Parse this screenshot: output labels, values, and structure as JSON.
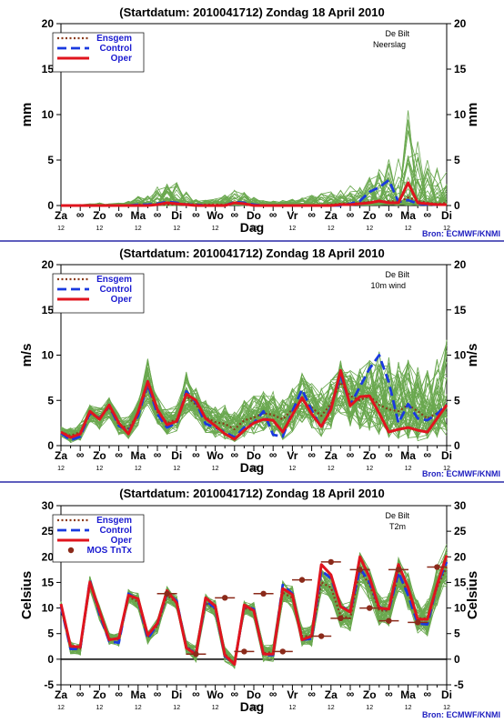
{
  "colors": {
    "ensemble_member": "#6aa84f",
    "ensgem": "#8b3a1a",
    "control": "#1a3adf",
    "oper": "#e0141e",
    "mos": "#8b2a1a",
    "separator": "#2828a8",
    "source": "#2020c0"
  },
  "day_labels": [
    "Za",
    "Zo",
    "Ma",
    "Di",
    "Wo",
    "Do",
    "Vr",
    "Za",
    "Zo",
    "Ma",
    "Di"
  ],
  "midnight_symbol": "∞",
  "hour_label": "12",
  "xlabel": "Dag",
  "source_text": "Bron: ECMWF/KNMI",
  "legend": {
    "ensgem": "Ensgem",
    "control": "Control",
    "oper": "Oper",
    "mos": "MOS TnTx"
  },
  "chart_data": [
    {
      "type": "line",
      "title": "(Startdatum: 2010041712)   Zondag    18 April    2010",
      "location": "De Bilt",
      "variable": "Neerslag",
      "ylabel": "mm",
      "ylim": [
        0,
        20
      ],
      "yticks": [
        0,
        5,
        10,
        15,
        20
      ],
      "x_unit": "time steps of 6 h from Saturday 12 UTC (index 0) to Tuesday 12 UTC (index 40)",
      "series": [
        {
          "name": "Ensgem",
          "values": [
            0,
            0,
            0,
            0,
            0,
            0,
            0,
            0,
            0.1,
            0.1,
            0.1,
            0.1,
            0.1,
            0.2,
            0.1,
            0.1,
            0.1,
            0.1,
            0.3,
            0.2,
            0.1,
            0,
            0,
            0,
            0,
            0,
            0,
            0,
            0.1,
            0.2,
            0.2,
            0.3,
            0.4,
            0.4,
            0.5,
            0.4,
            0.9,
            0.5,
            0.3,
            0.2,
            0.3
          ]
        },
        {
          "name": "Control",
          "values": [
            0,
            0,
            0,
            0,
            0,
            0,
            0,
            0,
            0.1,
            0.1,
            0.2,
            0.4,
            0.3,
            0.1,
            0.1,
            0,
            0,
            0,
            0.4,
            0.3,
            0.1,
            0,
            0,
            0,
            0,
            0,
            0,
            0,
            0,
            0,
            0.2,
            0.5,
            1.5,
            2.0,
            2.8,
            0.4,
            0.6,
            0.2,
            0.1,
            0.1,
            0.1
          ]
        },
        {
          "name": "Oper",
          "values": [
            0,
            0,
            0,
            0,
            0,
            0,
            0,
            0,
            0,
            0,
            0.1,
            0.3,
            0.2,
            0.1,
            0,
            0,
            0,
            0,
            0.3,
            0.2,
            0,
            0,
            0,
            0,
            0,
            0,
            0,
            0,
            0,
            0.1,
            0.1,
            0.2,
            0.3,
            0.5,
            0.3,
            0.3,
            2.5,
            0.3,
            0.2,
            0.1,
            0.1
          ]
        }
      ],
      "ensemble_envelope_max": [
        0.1,
        0.1,
        0.2,
        0.2,
        0.3,
        0.2,
        0.3,
        0.5,
        1.0,
        1.2,
        2.2,
        3.0,
        2.5,
        1.5,
        0.8,
        0.6,
        0.8,
        1.2,
        1.8,
        1.4,
        1.0,
        0.6,
        0.5,
        0.6,
        0.8,
        0.9,
        1.2,
        1.4,
        1.6,
        2.0,
        2.4,
        2.8,
        3.2,
        4.0,
        5.0,
        6.0,
        10.8,
        7.0,
        5.5,
        4.5,
        4.0
      ]
    },
    {
      "type": "line",
      "title": "(Startdatum: 2010041712)   Zondag    18 April    2010",
      "location": "De Bilt",
      "variable": "10m wind",
      "ylabel": "m/s",
      "ylim": [
        0,
        20
      ],
      "yticks": [
        0,
        5,
        10,
        15,
        20
      ],
      "series": [
        {
          "name": "Ensgem",
          "values": [
            1.5,
            1.1,
            1.5,
            3.5,
            3.1,
            4.2,
            2.3,
            1.9,
            3.5,
            6.5,
            3.7,
            2.5,
            2.9,
            5.5,
            4.5,
            3.1,
            2.6,
            2.4,
            1.8,
            2.8,
            3.1,
            3.6,
            3.4,
            2.9,
            4.0,
            5.0,
            4.2,
            3.3,
            4.6,
            7.0,
            5.5,
            5.0,
            5.5,
            4.5,
            4.0,
            3.8,
            4.5,
            3.8,
            3.0,
            3.6,
            4.2
          ]
        },
        {
          "name": "Control",
          "values": [
            1.4,
            0.6,
            1.0,
            3.6,
            3.0,
            4.4,
            2.2,
            1.6,
            3.3,
            6.8,
            3.5,
            2.0,
            2.5,
            6.0,
            4.8,
            2.4,
            2.0,
            1.5,
            0.9,
            2.0,
            2.5,
            3.8,
            1.2,
            1.0,
            3.8,
            6.2,
            3.9,
            2.0,
            4.2,
            7.8,
            4.5,
            6.5,
            8.5,
            10.0,
            7.0,
            2.5,
            4.6,
            3.0,
            2.8,
            3.5,
            4.5
          ]
        },
        {
          "name": "Oper",
          "values": [
            1.5,
            0.9,
            1.3,
            3.8,
            2.9,
            4.5,
            2.5,
            1.3,
            3.7,
            7.1,
            4.0,
            2.3,
            2.7,
            5.7,
            5.0,
            3.0,
            2.2,
            1.3,
            0.7,
            1.7,
            2.5,
            2.9,
            2.8,
            1.5,
            3.4,
            5.3,
            3.5,
            2.1,
            4.0,
            8.3,
            4.4,
            5.4,
            5.5,
            3.6,
            1.5,
            1.8,
            2.0,
            1.7,
            1.5,
            3.0,
            4.5
          ]
        }
      ],
      "ensemble_envelope_min": [
        1.0,
        0.3,
        0.6,
        2.5,
        1.8,
        3.0,
        1.2,
        0.7,
        2.2,
        4.5,
        2.4,
        1.2,
        1.6,
        3.5,
        2.8,
        1.4,
        0.9,
        0.6,
        0.3,
        0.8,
        1.2,
        1.5,
        1.0,
        0.6,
        1.5,
        2.5,
        1.8,
        1.0,
        1.8,
        3.5,
        2.0,
        1.8,
        1.5,
        1.2,
        0.8,
        0.6,
        0.7,
        0.5,
        0.4,
        0.8,
        1.0
      ],
      "ensemble_envelope_max": [
        2.1,
        2.0,
        2.5,
        4.5,
        4.2,
        5.3,
        3.5,
        3.2,
        5.0,
        9.8,
        5.5,
        4.0,
        4.5,
        8.2,
        6.5,
        5.0,
        4.5,
        4.5,
        3.8,
        5.0,
        5.5,
        6.0,
        6.0,
        5.5,
        6.5,
        8.0,
        7.0,
        6.5,
        7.5,
        9.5,
        8.5,
        8.5,
        9.5,
        10.5,
        10.0,
        9.5,
        10.5,
        9.0,
        8.5,
        10.0,
        12.0
      ]
    },
    {
      "type": "line",
      "title": "(Startdatum: 2010041712)   Zondag    18 April    2010",
      "location": "De Bilt",
      "variable": "T2m",
      "ylabel": "Celsius",
      "ylim": [
        -5,
        30
      ],
      "yticks": [
        -5,
        0,
        5,
        10,
        15,
        20,
        25,
        30
      ],
      "series": [
        {
          "name": "Ensgem",
          "values": [
            10.5,
            2.2,
            2.0,
            15.0,
            9.0,
            4.0,
            3.8,
            12.2,
            11.2,
            4.2,
            6.5,
            12.5,
            11.0,
            2.5,
            1.2,
            11.0,
            9.8,
            1.0,
            -0.8,
            10.0,
            9.5,
            1.2,
            1.4,
            13.0,
            12.0,
            4.5,
            4.5,
            15.0,
            14.0,
            8.5,
            8.0,
            17.5,
            14.5,
            9.5,
            9.5,
            16.5,
            13.0,
            8.0,
            8.0,
            14.0,
            18.0
          ]
        },
        {
          "name": "Control",
          "values": [
            10.3,
            2.0,
            2.0,
            15.4,
            8.8,
            3.5,
            3.2,
            12.8,
            11.6,
            4.0,
            6.8,
            13.0,
            11.4,
            2.3,
            1.0,
            11.4,
            10.0,
            0.6,
            -1.0,
            10.4,
            9.8,
            0.8,
            0.8,
            14.5,
            12.8,
            3.8,
            4.0,
            17.3,
            15.8,
            10.5,
            9.2,
            17.8,
            15.0,
            10.2,
            9.5,
            17.0,
            12.5,
            7.0,
            6.8,
            14.5,
            19.0
          ]
        },
        {
          "name": "Oper",
          "values": [
            10.8,
            2.5,
            2.4,
            15.1,
            9.4,
            3.8,
            4.1,
            12.5,
            11.8,
            4.7,
            7.0,
            13.4,
            11.0,
            2.2,
            0.9,
            12.0,
            10.4,
            0.8,
            -1.0,
            10.6,
            9.5,
            1.0,
            1.0,
            13.8,
            12.6,
            3.8,
            4.5,
            18.5,
            16.5,
            10.3,
            9.2,
            20.0,
            16.0,
            10.0,
            9.8,
            18.5,
            14.0,
            7.8,
            7.8,
            14.5,
            20.3
          ]
        }
      ],
      "mos_tntx": {
        "x_index": [
          11,
          14,
          17,
          19,
          21,
          23,
          25,
          27,
          28,
          29,
          31,
          32,
          34,
          35,
          37,
          39
        ],
        "values": [
          12.8,
          1.0,
          12.0,
          1.5,
          12.8,
          1.5,
          15.5,
          4.5,
          19.0,
          8.0,
          17.5,
          10.0,
          7.5,
          17.5,
          7.2,
          18.0
        ]
      },
      "ensemble_envelope_min": [
        9.5,
        1.0,
        0.8,
        13.5,
        7.5,
        2.8,
        2.5,
        10.8,
        9.8,
        3.0,
        5.0,
        11.0,
        9.5,
        1.0,
        -0.5,
        9.5,
        8.0,
        -0.5,
        -2.0,
        8.5,
        7.8,
        -0.5,
        -0.5,
        11.0,
        9.8,
        2.5,
        2.5,
        12.5,
        11.5,
        6.0,
        5.5,
        14.5,
        11.5,
        6.5,
        6.5,
        13.0,
        9.5,
        5.0,
        4.5,
        10.5,
        14.0
      ],
      "ensemble_envelope_max": [
        11.3,
        3.5,
        3.3,
        16.3,
        10.5,
        5.3,
        5.1,
        13.7,
        12.9,
        5.5,
        8.0,
        14.2,
        12.5,
        3.8,
        2.7,
        12.8,
        11.6,
        2.4,
        0.5,
        11.8,
        11.3,
        2.8,
        3.0,
        15.3,
        14.3,
        6.4,
        6.9,
        17.8,
        16.9,
        11.8,
        11.2,
        20.8,
        17.9,
        12.9,
        13.2,
        20.3,
        16.9,
        11.6,
        11.8,
        18.2,
        23.0
      ]
    }
  ]
}
